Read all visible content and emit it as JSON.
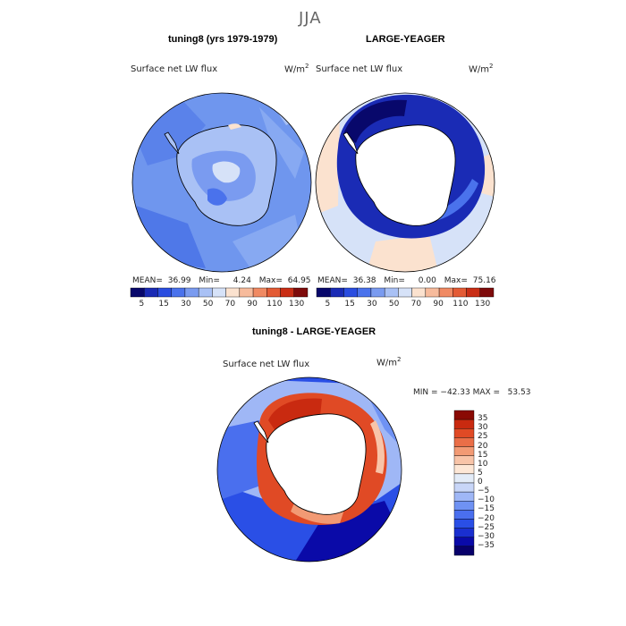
{
  "season": "JJA",
  "colors": {
    "abs_scale": [
      "#08086b",
      "#1a2bb5",
      "#2a4de0",
      "#4a72ec",
      "#7a9bf0",
      "#a9c1f5",
      "#d6e2f8",
      "#fbe2cf",
      "#f7bb9c",
      "#f08a63",
      "#e35b35",
      "#c92e15",
      "#7e0b0b"
    ],
    "diff_scale": [
      "#08006b",
      "#0a0aa8",
      "#1a2fd0",
      "#2a4fe6",
      "#4a6fee",
      "#6f92f3",
      "#9fb7f6",
      "#c8d6f8",
      "#e3ecf8",
      "#fde7d6",
      "#f8c4a8",
      "#f29a74",
      "#ea6e47",
      "#e04a25",
      "#c92a10",
      "#8a0a04"
    ]
  },
  "chart_data": [
    {
      "type": "heatmap",
      "panel_title": "tuning8 (yrs 1979-1979)",
      "variable": "Surface net LW flux",
      "units": "W/m",
      "units_sup": "2",
      "stats": {
        "mean_label": "MEAN=",
        "mean": "36.99",
        "min_label": "Min=",
        "min": "4.24",
        "max_label": "Max=",
        "max": "64.95"
      },
      "colorbar_ticks": [
        "5",
        "15",
        "30",
        "50",
        "70",
        "90",
        "110",
        "130"
      ]
    },
    {
      "type": "heatmap",
      "panel_title": "LARGE-YEAGER",
      "variable": "Surface net LW flux",
      "units": "W/m",
      "units_sup": "2",
      "stats": {
        "mean_label": "MEAN=",
        "mean": "36.38",
        "min_label": "Min=",
        "min": "0.00",
        "max_label": "Max=",
        "max": "75.16"
      },
      "colorbar_ticks": [
        "5",
        "15",
        "30",
        "50",
        "70",
        "90",
        "110",
        "130"
      ]
    },
    {
      "type": "heatmap",
      "panel_title": "tuning8 - LARGE-YEAGER",
      "variable": "Surface net LW flux",
      "units": "W/m",
      "units_sup": "2",
      "minmax_text": "MIN = −42.33 MAX =   53.53",
      "colorbar_ticks": [
        "35",
        "30",
        "25",
        "20",
        "15",
        "10",
        "5",
        "0",
        "−5",
        "−10",
        "−15",
        "−20",
        "−25",
        "−30",
        "−35"
      ]
    }
  ]
}
